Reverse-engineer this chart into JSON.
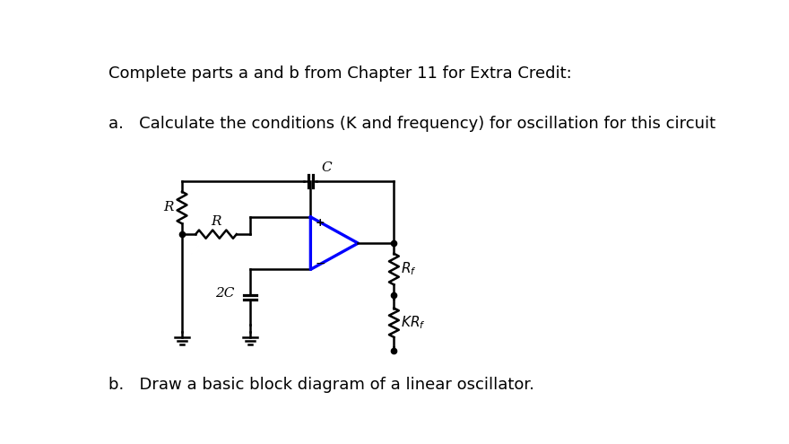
{
  "title": "Complete parts a and b from Chapter 11 for Extra Credit:",
  "part_a": "a.   Calculate the conditions (K and frequency) for oscillation for this circuit",
  "part_b": "b.   Draw a basic block diagram of a linear oscillator.",
  "bg_color": "#ffffff",
  "circuit_color": "#000000",
  "opamp_color": "#0000ff",
  "text_color": "#000000",
  "font_size_title": 13,
  "font_size_parts": 13,
  "xL": 115,
  "xM": 210,
  "xOL": 285,
  "xR": 420,
  "yTop": 180,
  "yMidWire": 265,
  "yGndL": 395,
  "yGnd2C": 395,
  "xCap": 320,
  "opamp_size": 78,
  "yOpAmp": 270,
  "lw": 1.8
}
